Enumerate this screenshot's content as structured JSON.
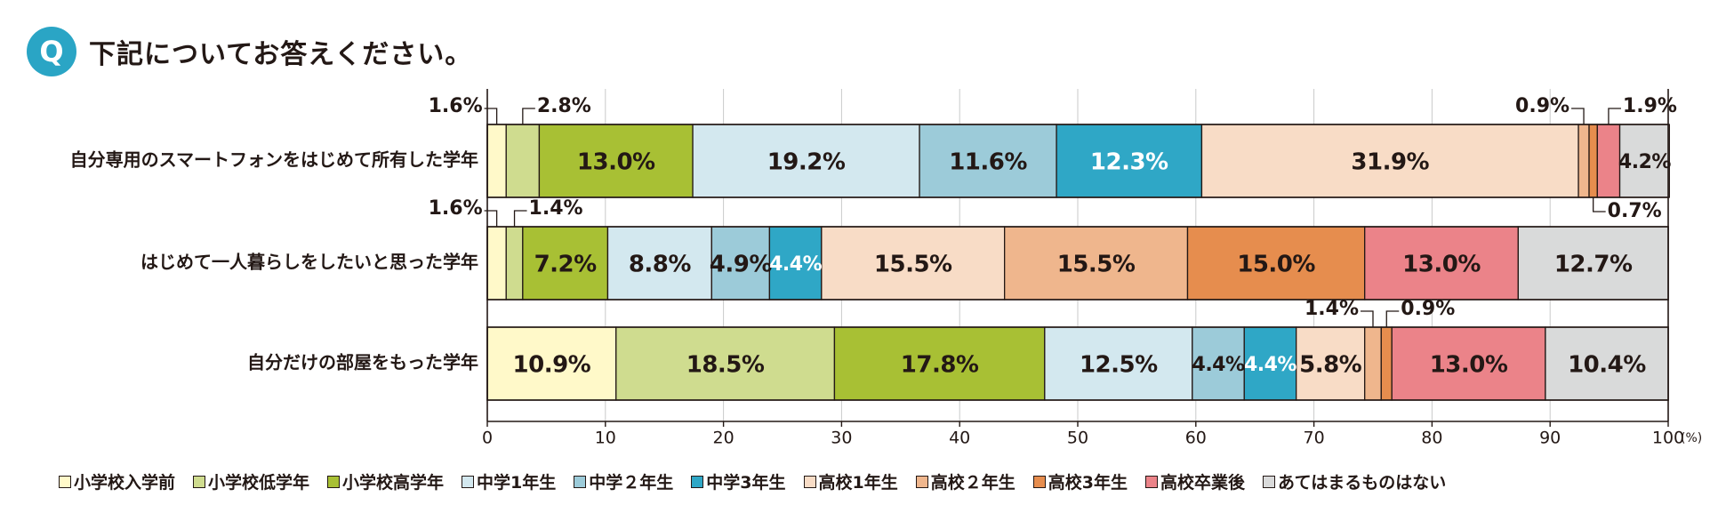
{
  "question": {
    "badge": "Q",
    "text": "下記についてお答えください。"
  },
  "chart_data": {
    "type": "bar",
    "orientation": "horizontal",
    "stacked": true,
    "unit_label": "(%)",
    "xlim": [
      0,
      100
    ],
    "xticks": [
      0,
      10,
      20,
      30,
      40,
      50,
      60,
      70,
      80,
      90,
      100
    ],
    "grid": true,
    "categories": [
      "自分専用のスマートフォンをはじめて所有した学年",
      "はじめて一人暮らしをしたいと思った学年",
      "自分だけの部屋をもった学年"
    ],
    "series": [
      {
        "name": "小学校入学前",
        "color": "#fff9c9",
        "values": [
          1.6,
          1.6,
          10.9
        ]
      },
      {
        "name": "小学校低学年",
        "color": "#cfdc8f",
        "values": [
          2.8,
          1.4,
          18.5
        ]
      },
      {
        "name": "小学校高学年",
        "color": "#a8c034",
        "values": [
          13.0,
          7.2,
          17.8
        ]
      },
      {
        "name": "中学1年生",
        "color": "#d3e8ef",
        "values": [
          19.2,
          8.8,
          12.5
        ]
      },
      {
        "name": "中学２年生",
        "color": "#9ccbd9",
        "values": [
          11.6,
          4.9,
          4.4
        ]
      },
      {
        "name": "中学3年生",
        "color": "#2fa7c6",
        "values": [
          12.3,
          4.4,
          4.4
        ]
      },
      {
        "name": "高校1年生",
        "color": "#f8dcc6",
        "values": [
          31.9,
          15.5,
          5.8
        ]
      },
      {
        "name": "高校２年生",
        "color": "#efb68d",
        "values": [
          0.9,
          15.5,
          1.4
        ]
      },
      {
        "name": "高校3年生",
        "color": "#e68d4e",
        "values": [
          0.7,
          15.0,
          0.9
        ]
      },
      {
        "name": "高校卒業後",
        "color": "#eb8389",
        "values": [
          1.9,
          13.0,
          13.0
        ]
      },
      {
        "name": "あてはまるものはない",
        "color": "#d9dada",
        "values": [
          4.2,
          12.7,
          10.4
        ]
      }
    ],
    "labels": [
      [
        "1.6%",
        "2.8%",
        "13.0%",
        "19.2%",
        "11.6%",
        "12.3%",
        "31.9%",
        "0.9%",
        "0.7%",
        "1.9%",
        "4.2%"
      ],
      [
        "1.6%",
        "1.4%",
        "7.2%",
        "8.8%",
        "4.9%",
        "4.4%",
        "15.5%",
        "15.5%",
        "15.0%",
        "13.0%",
        "12.7%"
      ],
      [
        "10.9%",
        "18.5%",
        "17.8%",
        "12.5%",
        "4.4%",
        "4.4%",
        "5.8%",
        "1.4%",
        "0.9%",
        "13.0%",
        "10.4%"
      ]
    ]
  }
}
